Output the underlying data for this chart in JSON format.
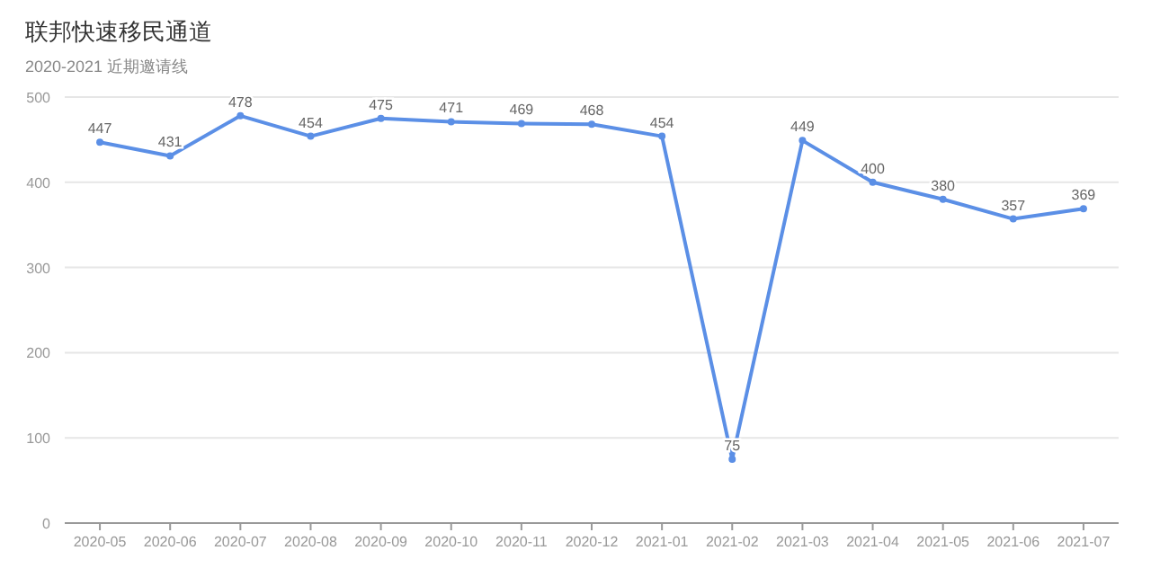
{
  "chart_data": {
    "type": "line",
    "title": "联邦快速移民通道",
    "subtitle": "2020-2021 近期邀请线",
    "categories": [
      "2020-05",
      "2020-06",
      "2020-07",
      "2020-08",
      "2020-09",
      "2020-10",
      "2020-11",
      "2020-12",
      "2021-01",
      "2021-02",
      "2021-03",
      "2021-04",
      "2021-05",
      "2021-06",
      "2021-07"
    ],
    "series": [
      {
        "color": "#5b8fe6",
        "values": [
          447,
          431,
          478,
          454,
          475,
          471,
          469,
          468,
          454,
          75,
          449,
          400,
          380,
          357,
          369
        ]
      }
    ],
    "ylim": [
      0,
      500
    ],
    "yticks": [
      0,
      100,
      200,
      300,
      400,
      500
    ],
    "grid": "y",
    "data_labels": true,
    "marker": "circle",
    "line_style": "solid"
  }
}
